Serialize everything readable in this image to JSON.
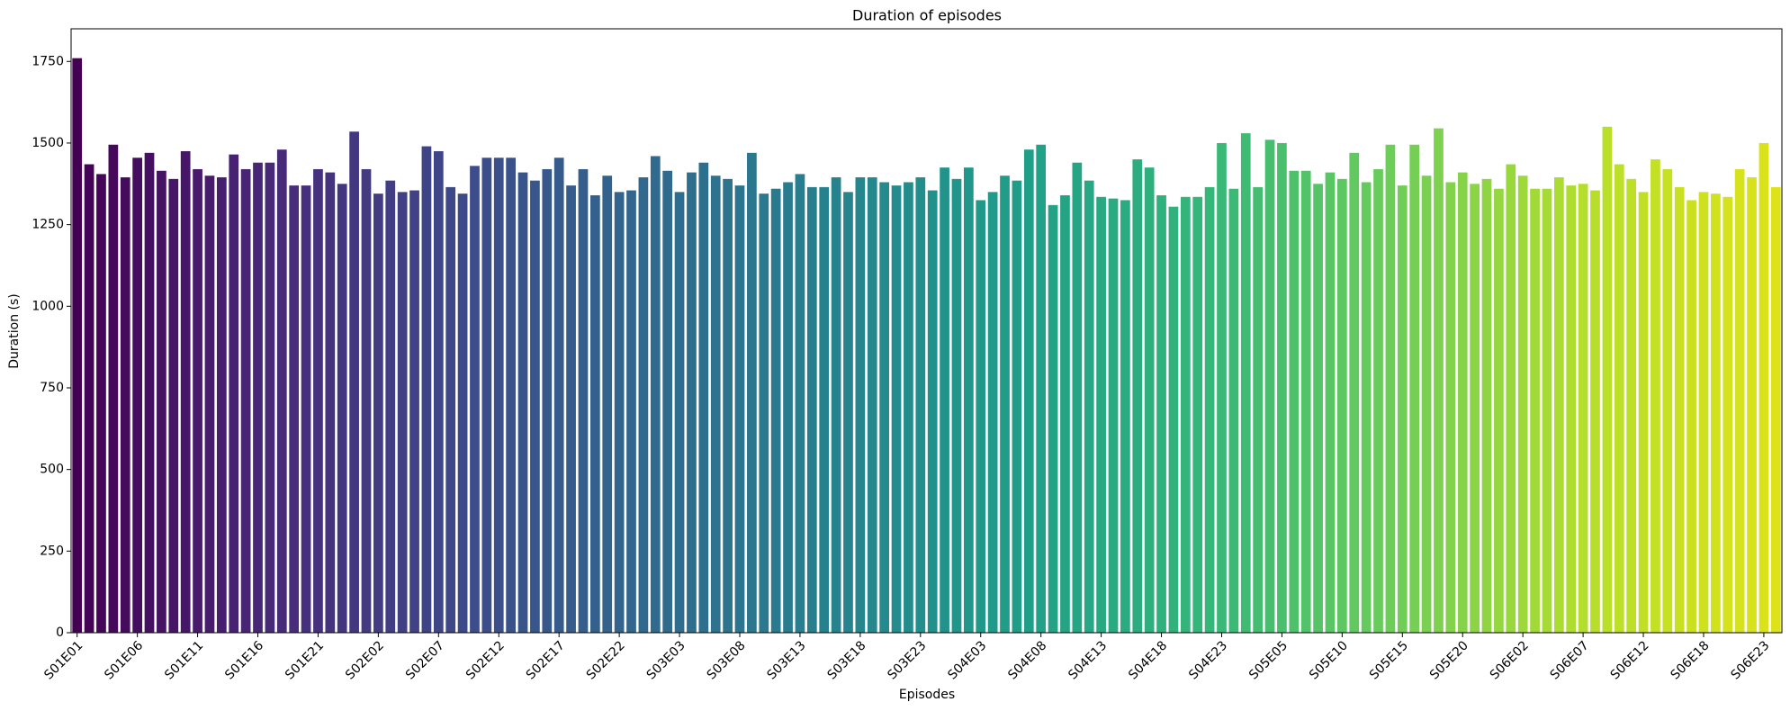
{
  "chart_data": {
    "type": "bar",
    "title": "Duration of episodes",
    "x_label": "Episodes",
    "y_label": "Duration (s)",
    "categories": [
      "S01E01",
      null,
      null,
      null,
      null,
      "S01E06",
      null,
      null,
      null,
      null,
      "S01E11",
      null,
      null,
      null,
      null,
      "S01E16",
      null,
      null,
      null,
      null,
      "S01E21",
      null,
      null,
      null,
      null,
      "S02E02",
      null,
      null,
      null,
      null,
      "S02E07",
      null,
      null,
      null,
      null,
      "S02E12",
      null,
      null,
      null,
      null,
      "S02E17",
      null,
      null,
      null,
      null,
      "S02E22",
      null,
      null,
      null,
      null,
      "S03E03",
      null,
      null,
      null,
      null,
      "S03E08",
      null,
      null,
      null,
      null,
      "S03E13",
      null,
      null,
      null,
      null,
      "S03E18",
      null,
      null,
      null,
      null,
      "S03E23",
      null,
      null,
      null,
      null,
      "S04E03",
      null,
      null,
      null,
      null,
      "S04E08",
      null,
      null,
      null,
      null,
      "S04E13",
      null,
      null,
      null,
      null,
      "S04E18",
      null,
      null,
      null,
      null,
      "S04E23",
      null,
      null,
      null,
      null,
      "S05E05",
      null,
      null,
      null,
      null,
      "S05E10",
      null,
      null,
      null,
      null,
      "S05E15",
      null,
      null,
      null,
      null,
      "S05E20",
      null,
      null,
      null,
      null,
      "S06E02",
      null,
      null,
      null,
      null,
      "S06E07",
      null,
      null,
      null,
      null,
      "S06E12",
      null,
      null,
      null,
      null,
      "S06E18",
      null,
      null,
      null,
      null,
      "S06E23",
      null
    ],
    "values": [
      1760,
      1435,
      1405,
      1495,
      1395,
      1455,
      1470,
      1415,
      1390,
      1475,
      1420,
      1400,
      1395,
      1465,
      1420,
      1440,
      1440,
      1480,
      1370,
      1370,
      1420,
      1410,
      1375,
      1535,
      1420,
      1345,
      1385,
      1350,
      1355,
      1490,
      1475,
      1365,
      1345,
      1430,
      1455,
      1455,
      1455,
      1410,
      1385,
      1420,
      1455,
      1370,
      1420,
      1340,
      1400,
      1350,
      1355,
      1395,
      1460,
      1415,
      1350,
      1410,
      1440,
      1400,
      1390,
      1370,
      1470,
      1345,
      1360,
      1380,
      1405,
      1365,
      1365,
      1395,
      1350,
      1395,
      1395,
      1380,
      1370,
      1380,
      1395,
      1355,
      1425,
      1390,
      1425,
      1325,
      1350,
      1400,
      1385,
      1480,
      1495,
      1310,
      1340,
      1440,
      1385,
      1335,
      1330,
      1325,
      1450,
      1425,
      1340,
      1305,
      1335,
      1335,
      1365,
      1500,
      1360,
      1530,
      1365,
      1510,
      1500,
      1415,
      1415,
      1375,
      1410,
      1390,
      1470,
      1380,
      1420,
      1495,
      1370,
      1495,
      1400,
      1545,
      1380,
      1410,
      1375,
      1390,
      1360,
      1435,
      1400,
      1360,
      1360,
      1395,
      1370,
      1375,
      1355,
      1550,
      1435,
      1390,
      1350,
      1450,
      1420,
      1365,
      1325,
      1350,
      1345,
      1335,
      1420,
      1395,
      1500,
      1365
    ],
    "colors": [
      "#440154",
      "#482878",
      "#3e4989",
      "#31688e",
      "#26828e",
      "#1f9e89",
      "#35b779",
      "#6ece58",
      "#b5de2b",
      "#dde318"
    ],
    "ylim": [
      0,
      1850
    ],
    "yticks": [
      0,
      250,
      500,
      750,
      1000,
      1250,
      1500,
      1750
    ]
  }
}
